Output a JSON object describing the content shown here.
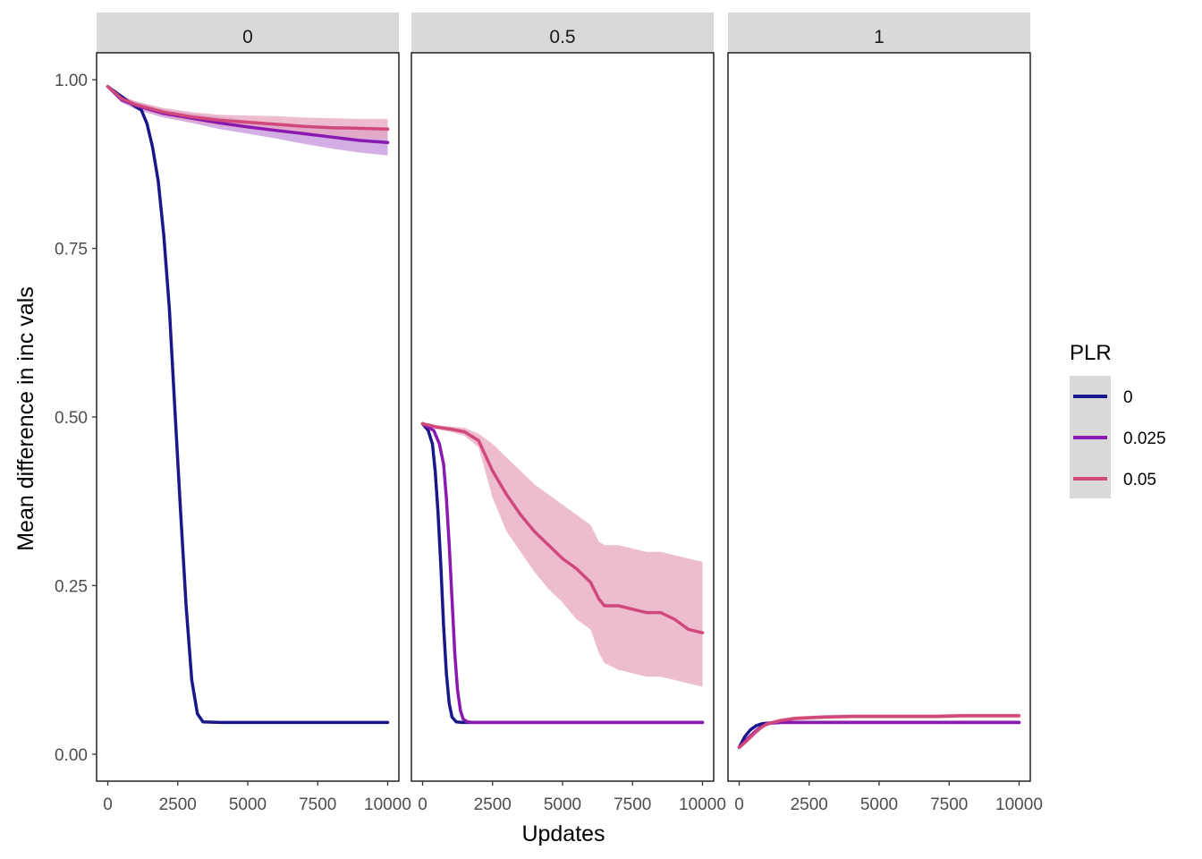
{
  "chart_data": {
    "type": "line",
    "layout": "faceted",
    "xlabel": "Updates",
    "ylabel": "Mean difference in inc vals",
    "xlim": [
      -400,
      10400
    ],
    "ylim": [
      -0.04,
      1.04
    ],
    "x_ticks": [
      0,
      2500,
      5000,
      7500,
      10000
    ],
    "x_tick_labels": [
      "0",
      "2500",
      "5000",
      "7500",
      "10000"
    ],
    "y_ticks": [
      0.0,
      0.25,
      0.5,
      0.75,
      1.0
    ],
    "y_tick_labels": [
      "0.00",
      "0.25",
      "0.50",
      "0.75",
      "1.00"
    ],
    "legend": {
      "title": "PLR",
      "position": "right",
      "entries": [
        {
          "label": "0",
          "color": "#19178a"
        },
        {
          "label": "0.025",
          "color": "#8a19b2"
        },
        {
          "label": "0.05",
          "color": "#d1487a"
        }
      ]
    },
    "colors": {
      "strip_bg": "#d9d9d9",
      "ribbon_pink": "#e7a7bf",
      "ribbon_purple": "#c493dc",
      "axis_text": "#4d4d4d"
    },
    "facets": [
      {
        "label": "0",
        "series": [
          {
            "name": "0",
            "x": [
              0,
              500,
              1000,
              1200,
              1400,
              1600,
              1800,
              2000,
              2200,
              2400,
              2600,
              2800,
              3000,
              3200,
              3400,
              4000,
              6000,
              8000,
              10000
            ],
            "y": [
              0.99,
              0.975,
              0.96,
              0.955,
              0.935,
              0.9,
              0.85,
              0.77,
              0.66,
              0.51,
              0.36,
              0.22,
              0.11,
              0.06,
              0.048,
              0.047,
              0.047,
              0.047,
              0.047
            ]
          },
          {
            "name": "0.025",
            "x": [
              0,
              500,
              1000,
              2000,
              3000,
              4000,
              5000,
              6000,
              7000,
              8000,
              9000,
              10000
            ],
            "y": [
              0.99,
              0.97,
              0.962,
              0.95,
              0.943,
              0.936,
              0.93,
              0.925,
              0.92,
              0.915,
              0.91,
              0.907
            ],
            "band_low": [
              0.988,
              0.966,
              0.956,
              0.944,
              0.936,
              0.927,
              0.92,
              0.913,
              0.905,
              0.898,
              0.892,
              0.888
            ],
            "band_high": [
              0.992,
              0.974,
              0.968,
              0.956,
              0.95,
              0.945,
              0.94,
              0.936,
              0.933,
              0.93,
              0.928,
              0.926
            ]
          },
          {
            "name": "0.05",
            "x": [
              0,
              500,
              1000,
              2000,
              3000,
              4000,
              5000,
              6000,
              7000,
              8000,
              9000,
              10000
            ],
            "y": [
              0.99,
              0.972,
              0.963,
              0.952,
              0.945,
              0.94,
              0.937,
              0.934,
              0.931,
              0.929,
              0.928,
              0.927
            ],
            "band_low": [
              0.988,
              0.968,
              0.958,
              0.946,
              0.938,
              0.932,
              0.927,
              0.922,
              0.918,
              0.915,
              0.913,
              0.912
            ],
            "band_high": [
              0.992,
              0.976,
              0.968,
              0.958,
              0.952,
              0.948,
              0.947,
              0.946,
              0.944,
              0.943,
              0.942,
              0.942
            ]
          }
        ]
      },
      {
        "label": "0.5",
        "series": [
          {
            "name": "0",
            "x": [
              0,
              200,
              350,
              450,
              550,
              650,
              750,
              850,
              950,
              1050,
              1200,
              1400,
              2000,
              5000,
              8000,
              10000
            ],
            "y": [
              0.49,
              0.48,
              0.46,
              0.42,
              0.36,
              0.28,
              0.19,
              0.12,
              0.075,
              0.055,
              0.048,
              0.047,
              0.047,
              0.047,
              0.047,
              0.047
            ]
          },
          {
            "name": "0.025",
            "x": [
              0,
              400,
              600,
              750,
              850,
              950,
              1050,
              1150,
              1250,
              1350,
              1450,
              1600,
              1800,
              2500,
              5000,
              8000,
              10000
            ],
            "y": [
              0.49,
              0.48,
              0.46,
              0.43,
              0.38,
              0.31,
              0.23,
              0.15,
              0.095,
              0.065,
              0.052,
              0.048,
              0.047,
              0.047,
              0.047,
              0.047,
              0.047
            ]
          },
          {
            "name": "0.05",
            "x": [
              0,
              500,
              1000,
              1500,
              2000,
              2500,
              3000,
              3500,
              4000,
              4500,
              5000,
              5500,
              6000,
              6300,
              6500,
              7000,
              7500,
              8000,
              8500,
              9000,
              9500,
              10000
            ],
            "y": [
              0.49,
              0.485,
              0.482,
              0.478,
              0.465,
              0.42,
              0.385,
              0.355,
              0.33,
              0.31,
              0.29,
              0.275,
              0.255,
              0.23,
              0.22,
              0.22,
              0.215,
              0.21,
              0.21,
              0.2,
              0.185,
              0.18
            ],
            "band_low": [
              0.488,
              0.482,
              0.478,
              0.472,
              0.455,
              0.38,
              0.33,
              0.3,
              0.27,
              0.245,
              0.225,
              0.2,
              0.185,
              0.15,
              0.135,
              0.125,
              0.12,
              0.115,
              0.115,
              0.11,
              0.105,
              0.1
            ],
            "band_high": [
              0.492,
              0.488,
              0.486,
              0.484,
              0.475,
              0.46,
              0.44,
              0.42,
              0.4,
              0.385,
              0.37,
              0.355,
              0.34,
              0.315,
              0.31,
              0.31,
              0.305,
              0.3,
              0.3,
              0.295,
              0.29,
              0.285
            ]
          }
        ]
      },
      {
        "label": "1",
        "series": [
          {
            "name": "0",
            "x": [
              0,
              100,
              200,
              400,
              600,
              800,
              1000,
              1500,
              5000,
              10000
            ],
            "y": [
              0.01,
              0.018,
              0.026,
              0.036,
              0.042,
              0.045,
              0.046,
              0.047,
              0.047,
              0.047
            ]
          },
          {
            "name": "0.025",
            "x": [
              0,
              150,
              300,
              500,
              700,
              900,
              1100,
              1500,
              5000,
              10000
            ],
            "y": [
              0.01,
              0.016,
              0.023,
              0.031,
              0.038,
              0.043,
              0.046,
              0.047,
              0.047,
              0.047
            ]
          },
          {
            "name": "0.05",
            "x": [
              0,
              200,
              400,
              600,
              800,
              1000,
              1500,
              2000,
              3000,
              4000,
              5000,
              6000,
              7000,
              8000,
              9000,
              10000
            ],
            "y": [
              0.01,
              0.017,
              0.025,
              0.033,
              0.04,
              0.045,
              0.05,
              0.053,
              0.055,
              0.056,
              0.056,
              0.056,
              0.056,
              0.057,
              0.057,
              0.057
            ],
            "band_low": [
              0.009,
              0.015,
              0.022,
              0.03,
              0.037,
              0.042,
              0.047,
              0.05,
              0.052,
              0.053,
              0.053,
              0.053,
              0.053,
              0.054,
              0.054,
              0.054
            ],
            "band_high": [
              0.011,
              0.019,
              0.028,
              0.036,
              0.043,
              0.048,
              0.053,
              0.056,
              0.058,
              0.059,
              0.059,
              0.059,
              0.059,
              0.06,
              0.06,
              0.06
            ]
          }
        ]
      }
    ]
  }
}
